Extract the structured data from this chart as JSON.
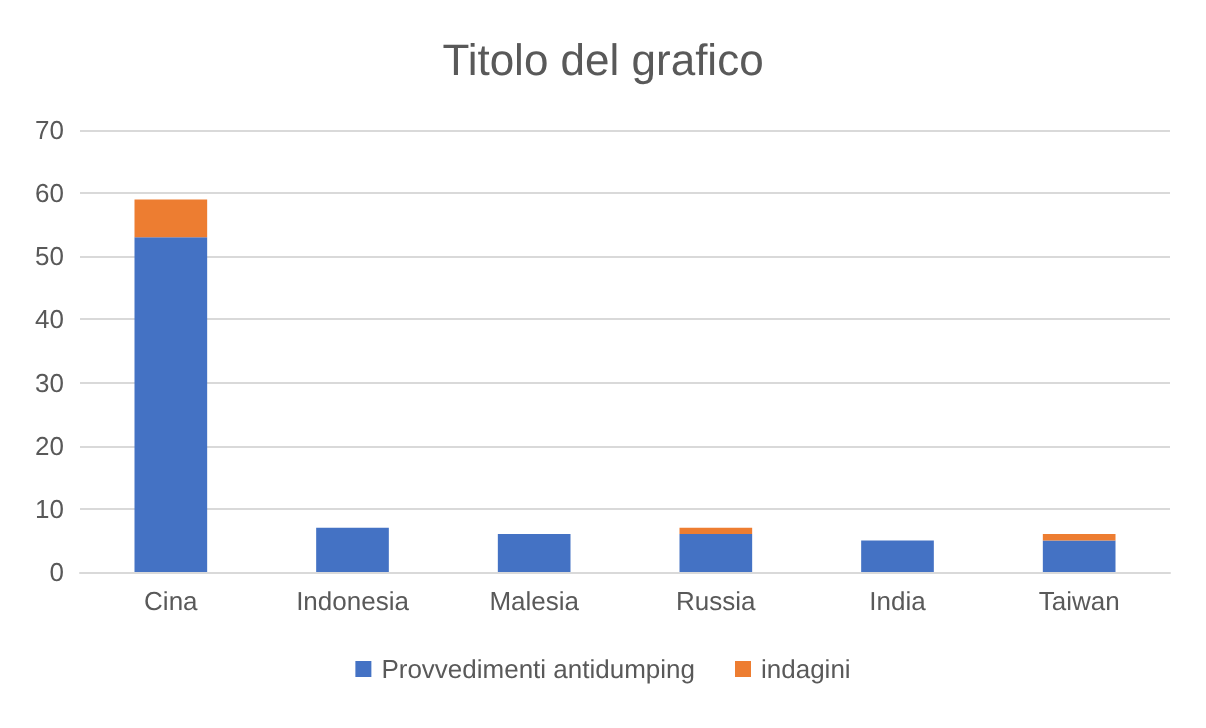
{
  "chart_data": {
    "type": "bar",
    "title": "Titolo del grafico",
    "stacked": true,
    "categories": [
      "Cina",
      "Indonesia",
      "Malesia",
      "Russia",
      "India",
      "Taiwan"
    ],
    "series": [
      {
        "name": "Provvedimenti antidumping",
        "color": "#4472c4",
        "values": [
          53,
          7,
          6,
          6,
          5,
          5
        ]
      },
      {
        "name": "indagini",
        "color": "#ed7d31",
        "values": [
          6,
          0,
          0,
          1,
          0,
          1
        ]
      }
    ],
    "ylim": [
      0,
      70
    ],
    "yticks": [
      0,
      10,
      20,
      30,
      40,
      50,
      60,
      70
    ],
    "grid": "y",
    "legend": "bottom"
  }
}
